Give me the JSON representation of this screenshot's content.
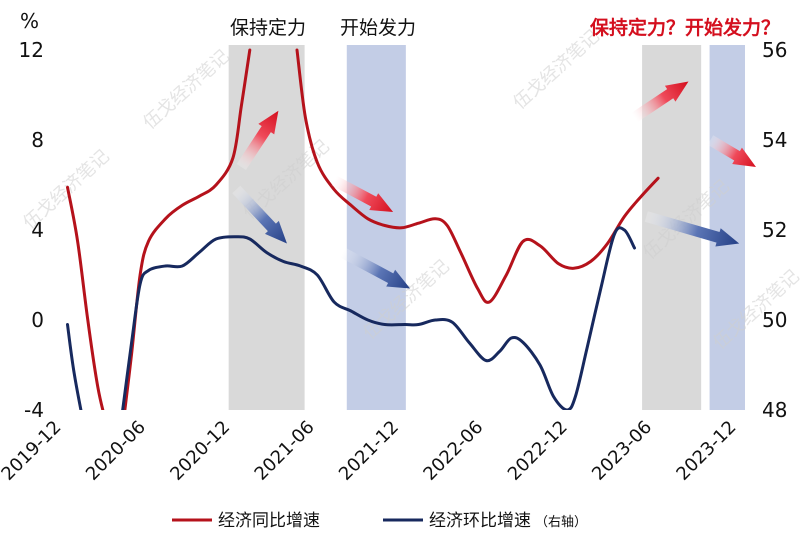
{
  "chart_data": {
    "type": "line",
    "left_axis_unit": "%",
    "ylim_left": [
      -4,
      12
    ],
    "ylim_right": [
      48,
      56
    ],
    "yticks_left": [
      "12",
      "8",
      "4",
      "0",
      "-4"
    ],
    "yticks_right": [
      "56",
      "54",
      "52",
      "50",
      "48"
    ],
    "x_ticks": [
      "2019-12",
      "2020-06",
      "2020-12",
      "2021-06",
      "2021-12",
      "2022-06",
      "2022-12",
      "2023-06",
      "2023-12"
    ],
    "x_tick_dates": [
      2019.917,
      2020.417,
      2020.917,
      2021.417,
      2021.917,
      2022.417,
      2022.917,
      2023.417,
      2023.917
    ],
    "xlim": [
      2019.917,
      2023.917
    ],
    "annotations": {
      "shade1": "保持定力",
      "shade2": "开始发力",
      "future": "保持定力？开始发力？"
    },
    "shaded_periods": [
      {
        "from": 2020.875,
        "to": 2021.325,
        "color": "#d9d9d9",
        "label": "保持定力"
      },
      {
        "from": 2021.575,
        "to": 2021.925,
        "color": "#c3cde6",
        "label": "开始发力"
      },
      {
        "from": 2023.325,
        "to": 2023.675,
        "color": "#d9d9d9",
        "label": "保持定力？"
      },
      {
        "from": 2023.725,
        "to": 2024.025,
        "color": "#c3cde6",
        "label": "开始发力？"
      }
    ],
    "series": [
      {
        "name": "经济同比增速",
        "axis": "left",
        "color": "#b5121b",
        "segments": [
          [
            [
              2019.92,
              5.9
            ],
            [
              2019.98,
              3.5
            ],
            [
              2020.04,
              0.0
            ],
            [
              2020.1,
              -3.0
            ],
            [
              2020.15,
              -4.6
            ]
          ],
          [
            [
              2020.25,
              -4.6
            ],
            [
              2020.3,
              -1.5
            ],
            [
              2020.35,
              2.0
            ],
            [
              2020.4,
              3.5
            ],
            [
              2020.5,
              4.5
            ],
            [
              2020.6,
              5.1
            ],
            [
              2020.7,
              5.5
            ],
            [
              2020.8,
              6.0
            ],
            [
              2020.9,
              7.2
            ],
            [
              2020.95,
              9.5
            ],
            [
              2021.0,
              12.0
            ]
          ],
          [
            [
              2021.28,
              12.0
            ],
            [
              2021.33,
              9.0
            ],
            [
              2021.4,
              7.0
            ],
            [
              2021.5,
              5.8
            ],
            [
              2021.6,
              5.1
            ],
            [
              2021.7,
              4.5
            ],
            [
              2021.8,
              4.2
            ],
            [
              2021.9,
              4.1
            ],
            [
              2022.0,
              4.3
            ],
            [
              2022.1,
              4.5
            ],
            [
              2022.17,
              4.2
            ],
            [
              2022.25,
              3.0
            ],
            [
              2022.35,
              1.4
            ],
            [
              2022.42,
              0.8
            ],
            [
              2022.52,
              2.0
            ],
            [
              2022.62,
              3.5
            ],
            [
              2022.72,
              3.3
            ],
            [
              2022.83,
              2.5
            ],
            [
              2022.92,
              2.3
            ],
            [
              2023.02,
              2.6
            ],
            [
              2023.12,
              3.4
            ],
            [
              2023.22,
              4.6
            ],
            [
              2023.32,
              5.5
            ],
            [
              2023.42,
              6.3
            ]
          ]
        ]
      },
      {
        "name": "经济环比增速（右轴）",
        "axis": "right",
        "color": "#17295e",
        "segments": [
          [
            [
              2019.92,
              49.9
            ],
            [
              2019.96,
              48.8
            ],
            [
              2020.02,
              47.6
            ]
          ],
          [
            [
              2020.24,
              47.8
            ],
            [
              2020.3,
              49.5
            ],
            [
              2020.35,
              50.8
            ],
            [
              2020.4,
              51.1
            ],
            [
              2020.5,
              51.2
            ],
            [
              2020.6,
              51.2
            ],
            [
              2020.7,
              51.5
            ],
            [
              2020.8,
              51.8
            ],
            [
              2020.92,
              51.85
            ],
            [
              2021.0,
              51.8
            ],
            [
              2021.1,
              51.5
            ],
            [
              2021.2,
              51.3
            ],
            [
              2021.3,
              51.2
            ],
            [
              2021.4,
              51.0
            ],
            [
              2021.5,
              50.4
            ],
            [
              2021.6,
              50.2
            ],
            [
              2021.7,
              50.0
            ],
            [
              2021.8,
              49.9
            ],
            [
              2021.92,
              49.9
            ],
            [
              2022.0,
              49.9
            ],
            [
              2022.1,
              50.0
            ],
            [
              2022.2,
              49.95
            ],
            [
              2022.3,
              49.5
            ],
            [
              2022.4,
              49.1
            ],
            [
              2022.48,
              49.3
            ],
            [
              2022.55,
              49.6
            ],
            [
              2022.62,
              49.5
            ],
            [
              2022.72,
              49.0
            ],
            [
              2022.8,
              48.3
            ],
            [
              2022.88,
              48.0
            ],
            [
              2022.93,
              48.3
            ],
            [
              2023.0,
              49.4
            ],
            [
              2023.08,
              50.7
            ],
            [
              2023.16,
              51.9
            ],
            [
              2023.22,
              52.0
            ],
            [
              2023.28,
              51.6
            ]
          ]
        ]
      }
    ],
    "arrows": [
      {
        "color": "red",
        "from": [
          2020.95,
          6.8
        ],
        "to": [
          2021.17,
          9.3
        ]
      },
      {
        "color": "blue",
        "from": [
          2020.92,
          52.9
        ],
        "to": [
          2021.22,
          51.7
        ]
      },
      {
        "color": "red",
        "from": [
          2021.5,
          53.1
        ],
        "to": [
          2021.85,
          52.4
        ]
      },
      {
        "color": "blue",
        "from": [
          2021.55,
          51.5
        ],
        "to": [
          2021.95,
          50.7
        ]
      },
      {
        "color": "red",
        "from": [
          2023.28,
          54.5
        ],
        "to": [
          2023.6,
          55.3
        ]
      },
      {
        "color": "red",
        "from": [
          2023.73,
          54.0
        ],
        "to": [
          2024.0,
          53.4
        ]
      },
      {
        "color": "blue",
        "from": [
          2023.35,
          52.3
        ],
        "to": [
          2023.9,
          51.7
        ]
      }
    ],
    "legend": [
      "经济同比增速",
      "经济环比增速",
      "（右轴）"
    ],
    "watermark": "伍戈经济笔记"
  }
}
